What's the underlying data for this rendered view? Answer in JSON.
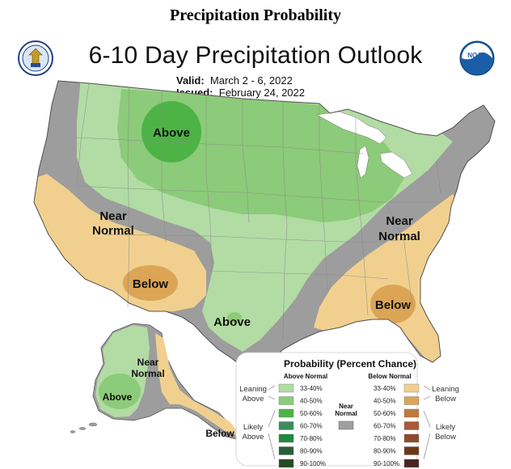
{
  "header": {
    "title": "Precipitation Probability"
  },
  "map": {
    "title": "6-10 Day Precipitation Outlook",
    "valid_label": "Valid:",
    "valid_value": "March 2 - 6, 2022",
    "issued_label": "Issued:",
    "issued_value": "February 24, 2022"
  },
  "region_labels": {
    "above_north": "Above",
    "near_normal_west_1": "Near",
    "near_normal_west_2": "Normal",
    "below_southwest": "Below",
    "above_texas": "Above",
    "near_normal_east_1": "Near",
    "near_normal_east_2": "Normal",
    "below_southeast": "Below",
    "alaska_near_1": "Near",
    "alaska_near_2": "Normal",
    "alaska_above": "Above",
    "alaska_below": "Below"
  },
  "legend": {
    "title": "Probability (Percent Chance)",
    "above_header": "Above Normal",
    "below_header": "Below Normal",
    "leaning_above_1": "Leaning",
    "leaning_above_2": "Above",
    "likely_above_1": "Likely",
    "likely_above_2": "Above",
    "leaning_below_1": "Leaning",
    "leaning_below_2": "Below",
    "likely_below_1": "Likely",
    "likely_below_2": "Below",
    "near_normal_1": "Near",
    "near_normal_2": "Normal",
    "ranges": [
      "33-40%",
      "40-50%",
      "50-60%",
      "60-70%",
      "70-80%",
      "80-90%",
      "90-100%"
    ],
    "above_colors": [
      "#b2dca4",
      "#8ccb79",
      "#4db346",
      "#3f8b5c",
      "#1f8a3c",
      "#2a5e3a",
      "#254a22"
    ],
    "below_colors": [
      "#f1d08f",
      "#dba555",
      "#c17a3d",
      "#a95a3a",
      "#8e4b2a",
      "#6b3817",
      "#4a2620"
    ],
    "near_normal_color": "#a0a0a0"
  },
  "colors": {
    "near_normal_fill": "#9d9d9d",
    "above_33_40": "#b2dca4",
    "above_40_50": "#8ccb79",
    "above_50_60": "#4db346",
    "below_33_40": "#f1d08f",
    "below_40_50": "#dba555"
  },
  "icons": {
    "left_logo": "commerce-seal-icon",
    "right_logo": "noaa-logo-icon"
  }
}
